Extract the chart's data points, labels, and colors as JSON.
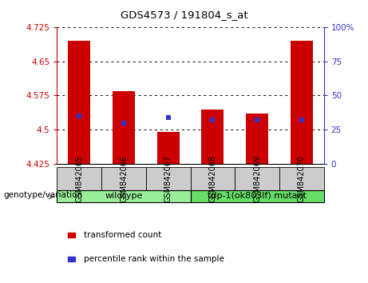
{
  "title": "GDS4573 / 191804_s_at",
  "samples": [
    "GSM842065",
    "GSM842066",
    "GSM842067",
    "GSM842068",
    "GSM842069",
    "GSM842070"
  ],
  "bar_tops": [
    4.695,
    4.585,
    4.495,
    4.545,
    4.535,
    4.695
  ],
  "bar_bottom": 4.425,
  "blue_values": [
    4.531,
    4.515,
    4.527,
    4.522,
    4.522,
    4.522
  ],
  "ylim": [
    4.425,
    4.725
  ],
  "y2lim": [
    0,
    100
  ],
  "yticks": [
    4.425,
    4.5,
    4.575,
    4.65,
    4.725
  ],
  "ytick_labels": [
    "4.425",
    "4.5",
    "4.575",
    "4.65",
    "4.725"
  ],
  "y2ticks": [
    0,
    25,
    50,
    75,
    100
  ],
  "y2tick_labels": [
    "0",
    "25",
    "50",
    "75",
    "100%"
  ],
  "bar_color": "#cc0000",
  "blue_color": "#3333cc",
  "group_wt_color": "#99ee99",
  "group_mut_color": "#66dd66",
  "group_wt_label": "wildtype",
  "group_wt_samples": [
    0,
    1,
    2
  ],
  "group_mut_label": "tdp-1(ok803lf) mutant",
  "group_mut_samples": [
    3,
    4,
    5
  ],
  "sample_box_color": "#cccccc",
  "legend_items": [
    {
      "label": "transformed count",
      "color": "#cc0000"
    },
    {
      "label": "percentile rank within the sample",
      "color": "#3333cc"
    }
  ],
  "genotype_label": "genotype/variation",
  "bar_width": 0.5
}
